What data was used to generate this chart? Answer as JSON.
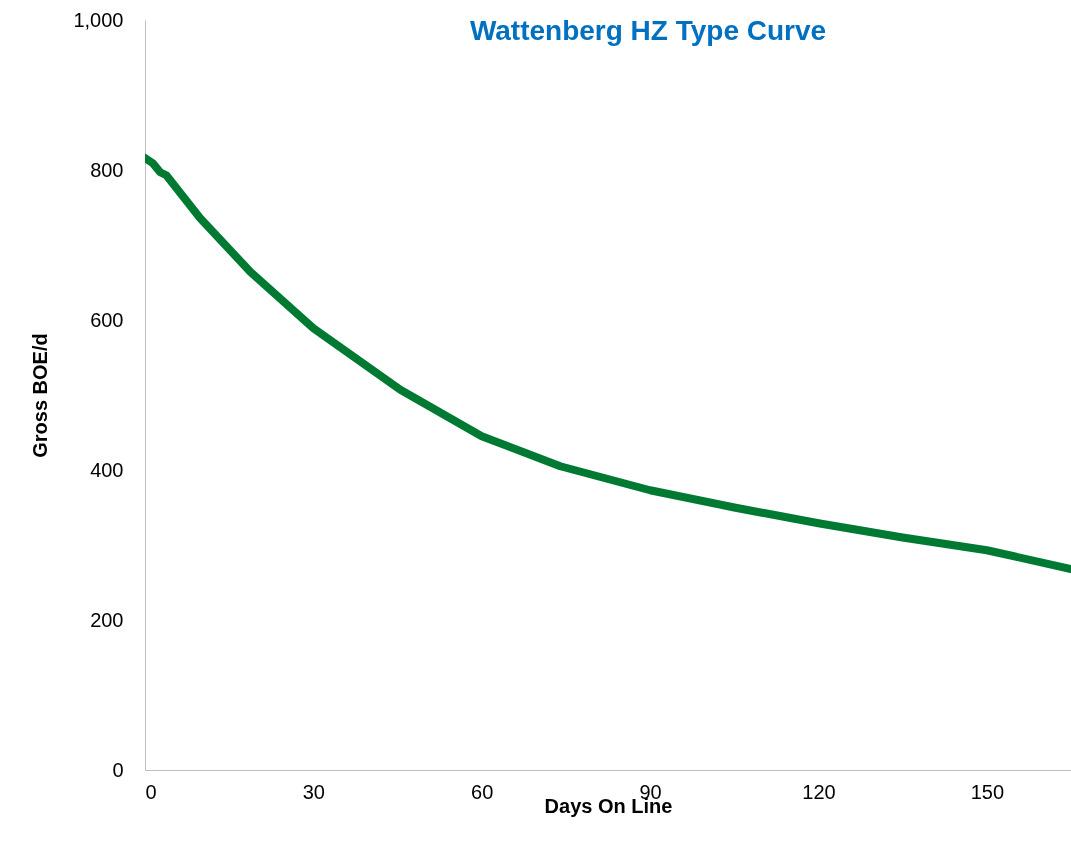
{
  "chart_data": {
    "type": "line",
    "title": "Wattenberg HZ Type Curve",
    "xlabel": "Days On Line",
    "ylabel": "Gross BOE/d",
    "xlim": [
      0,
      165
    ],
    "xticks": [
      0,
      30,
      60,
      90,
      120,
      150
    ],
    "ylim": [
      0,
      1000
    ],
    "yticks": [
      0,
      200,
      400,
      600,
      800,
      {
        "value": 1000,
        "label": "1,000"
      }
    ],
    "grid": false,
    "legend": false,
    "marker": "none",
    "line_style": "solid",
    "series": [
      {
        "color": "#007a33",
        "x": [
          0,
          1.4,
          2.7,
          3.8,
          9.8,
          18.8,
          30,
          45.5,
          60,
          74,
          90,
          105,
          120,
          135,
          150,
          165
        ],
        "values": [
          816,
          809,
          797,
          793,
          736,
          664,
          589,
          507,
          445,
          405,
          373,
          350,
          329,
          310,
          293,
          268
        ]
      }
    ]
  }
}
